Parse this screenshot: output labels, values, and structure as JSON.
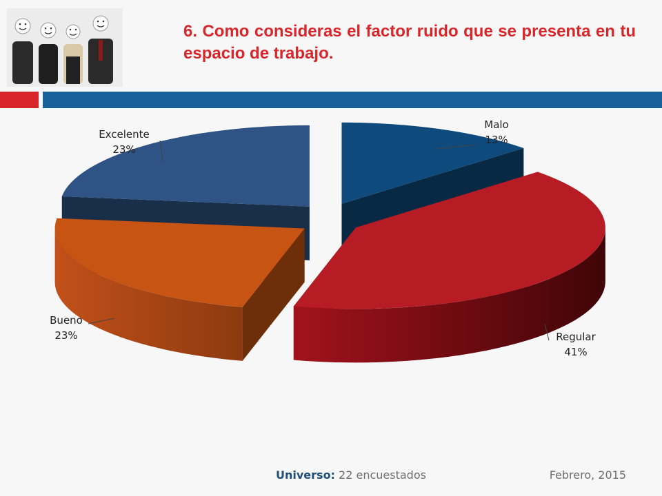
{
  "slide": {
    "title": "6. Como consideras el factor ruido que se presenta en tu espacio de trabajo.",
    "photo_icon": "smiley-faces-people-photo",
    "colors": {
      "accent_red": "#d9262a",
      "accent_blue": "#17609a"
    }
  },
  "chart_data": {
    "type": "pie",
    "style": "3d-exploded",
    "slices": [
      {
        "label": "Malo",
        "percent_label": "13%",
        "value": 13,
        "color": "#0e4a7c"
      },
      {
        "label": "Regular",
        "percent_label": "41%",
        "value": 41,
        "color": "#b71c25"
      },
      {
        "label": "Bueno",
        "percent_label": "23%",
        "value": 23,
        "color": "#c75413"
      },
      {
        "label": "Excelente",
        "percent_label": "23%",
        "value": 23,
        "color": "#2e5384"
      }
    ],
    "legend": "none"
  },
  "footer": {
    "universe_label": "Universo:",
    "universe_value": "22 encuestados",
    "date": "Febrero, 2015"
  }
}
